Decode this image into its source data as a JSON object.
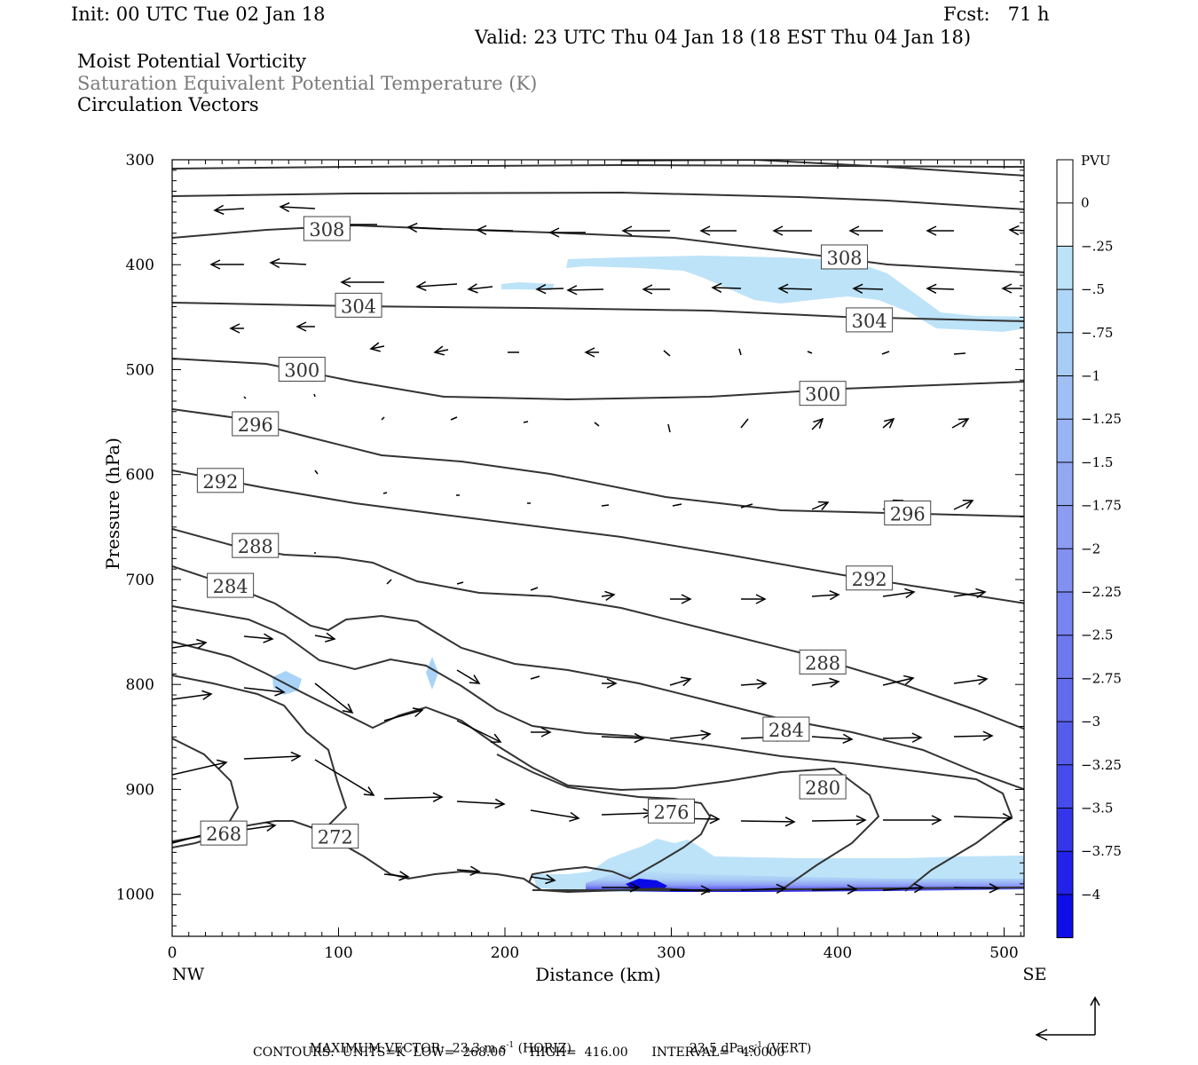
{
  "header": {
    "init": "Init: 00 UTC Tue 02 Jan 18",
    "fcst": "Fcst:   71 h",
    "valid": "Valid: 23 UTC Thu 04 Jan 18 (18 EST Thu 04 Jan 18)",
    "fields": [
      "Moist Potential Vorticity",
      "Saturation Equivalent Potential Temperature (K)",
      "Circulation Vectors"
    ]
  },
  "footer": {
    "max_vector_label": "MAXIMUM VECTOR:",
    "max_horiz": "23.3 m s",
    "max_horiz_unit": "(HORIZ)",
    "max_vert": "23.5 dPa s",
    "max_vert_unit": "(VERT)",
    "sup": "-1",
    "contours": "CONTOURS:  UNITS=K  LOW=  268.00      HIGH=  416.00      INTERVAL=   4.0000"
  },
  "colors": {
    "contour": "#333333",
    "pv_light": "#bde3f8",
    "pv_dark": "#0000ee"
  },
  "chart_data": {
    "type": "cross-section",
    "xlabel": "Distance (km)",
    "ylabel": "Pressure (hPa)",
    "xlim": [
      0,
      512
    ],
    "ylim": [
      300,
      1040
    ],
    "x_ticks": [
      "0",
      "100",
      "200",
      "300",
      "400",
      "500"
    ],
    "y_ticks": [
      "300",
      "400",
      "500",
      "600",
      "700",
      "800",
      "900",
      "1000"
    ],
    "x_end_labels": [
      "NW",
      "SE"
    ],
    "colorbar": {
      "unit": "PVU",
      "labels": [
        "0",
        "-.25",
        "-.5",
        "-.75",
        "-1",
        "-1.25",
        "-1.5",
        "-1.75",
        "-2",
        "-2.25",
        "-2.5",
        "-2.75",
        "-3",
        "-3.25",
        "-3.5",
        "-3.75",
        "-4"
      ]
    },
    "contour_labels": [
      {
        "text": "308",
        "x": 93,
        "y": 366
      },
      {
        "text": "308",
        "x": 404,
        "y": 393
      },
      {
        "text": "304",
        "x": 112,
        "y": 439
      },
      {
        "text": "304",
        "x": 419,
        "y": 453
      },
      {
        "text": "300",
        "x": 78,
        "y": 500
      },
      {
        "text": "300",
        "x": 391,
        "y": 523
      },
      {
        "text": "296",
        "x": 50,
        "y": 552
      },
      {
        "text": "296",
        "x": 442,
        "y": 637
      },
      {
        "text": "292",
        "x": 29,
        "y": 606
      },
      {
        "text": "292",
        "x": 419,
        "y": 699
      },
      {
        "text": "288",
        "x": 50,
        "y": 668
      },
      {
        "text": "288",
        "x": 391,
        "y": 779
      },
      {
        "text": "284",
        "x": 35,
        "y": 706
      },
      {
        "text": "284",
        "x": 369,
        "y": 843
      },
      {
        "text": "280",
        "x": 391,
        "y": 898
      },
      {
        "text": "276",
        "x": 300,
        "y": 921
      },
      {
        "text": "268",
        "x": 31,
        "y": 942
      },
      {
        "text": "272",
        "x": 98,
        "y": 945
      }
    ]
  }
}
